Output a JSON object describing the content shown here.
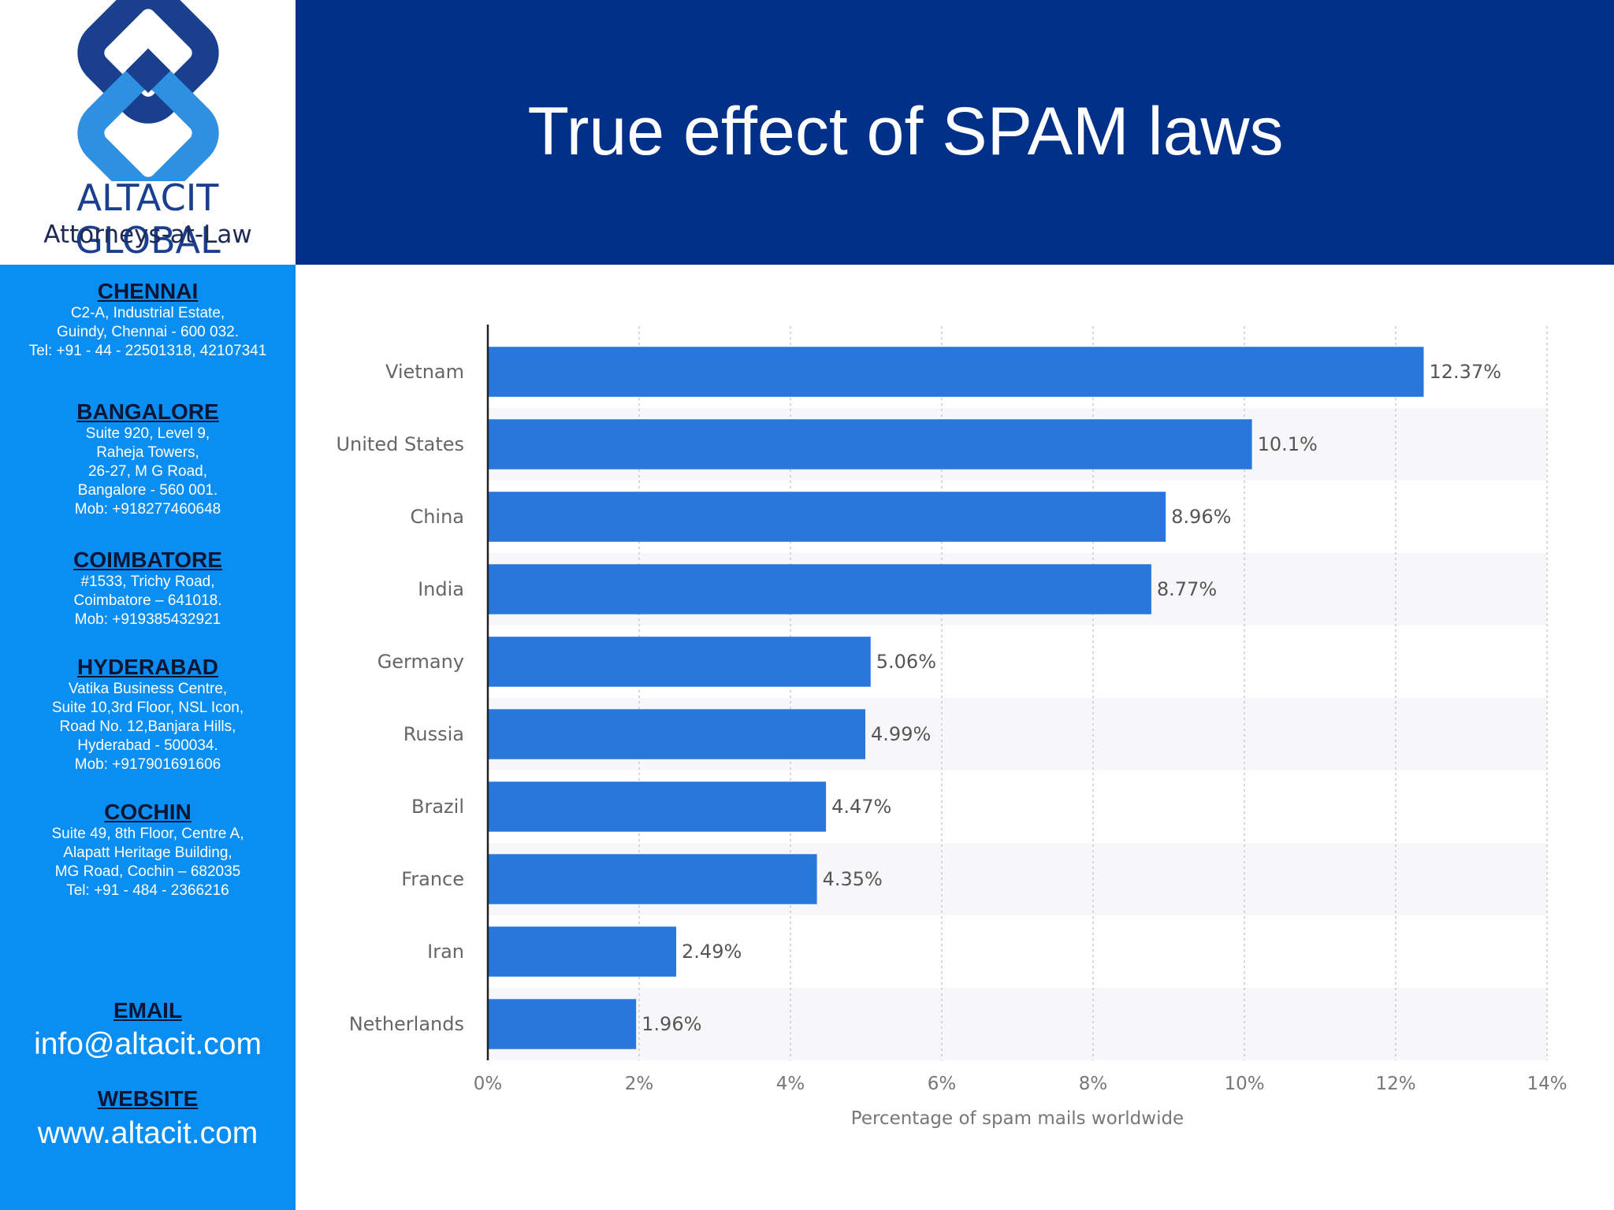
{
  "brand": {
    "name": "ALTACIT GLOBAL",
    "tagline": "Attorneys-at-Law",
    "colors": {
      "dark_blue": "#1a3f8f",
      "light_blue": "#2f8fe0"
    }
  },
  "header": {
    "title": "True effect of SPAM laws",
    "background": "#003087"
  },
  "sidebar": {
    "background": "#0b8ef2",
    "offices": [
      {
        "name": "CHENNAI",
        "lines": [
          "C2-A, Industrial Estate,",
          "Guindy, Chennai - 600 032.",
          "Tel: +91 - 44 - 22501318, 42107341"
        ]
      },
      {
        "name": "BANGALORE",
        "lines": [
          "Suite 920, Level 9,",
          "Raheja Towers,",
          "26-27, M G Road,",
          "Bangalore - 560 001.",
          "Mob: +918277460648"
        ]
      },
      {
        "name": "COIMBATORE",
        "lines": [
          "#1533, Trichy Road,",
          "Coimbatore – 641018.",
          "Mob: +919385432921"
        ]
      },
      {
        "name": "HYDERABAD",
        "lines": [
          "Vatika Business Centre,",
          "Suite 10,3rd Floor, NSL Icon,",
          "Road No. 12,Banjara Hills,",
          "Hyderabad - 500034.",
          "Mob: +917901691606"
        ]
      },
      {
        "name": "COCHIN",
        "lines": [
          "Suite 49, 8th Floor, Centre A,",
          "Alapatt Heritage Building,",
          "MG Road, Cochin – 682035",
          "Tel: +91 - 484 - 2366216"
        ]
      }
    ],
    "email_label": "EMAIL",
    "email": "info@altacit.com",
    "website_label": "WEBSITE",
    "website": "www.altacit.com"
  },
  "chart_data": {
    "type": "bar",
    "orientation": "horizontal",
    "categories": [
      "Vietnam",
      "United States",
      "China",
      "India",
      "Germany",
      "Russia",
      "Brazil",
      "France",
      "Iran",
      "Netherlands"
    ],
    "values": [
      12.37,
      10.1,
      8.96,
      8.77,
      5.06,
      4.99,
      4.47,
      4.35,
      2.49,
      1.96
    ],
    "value_labels": [
      "12.37%",
      "10.1%",
      "8.96%",
      "8.77%",
      "5.06%",
      "4.99%",
      "4.47%",
      "4.35%",
      "2.49%",
      "1.96%"
    ],
    "xlim": [
      0,
      14
    ],
    "xticks": [
      0,
      2,
      4,
      6,
      8,
      10,
      12,
      14
    ],
    "xtick_labels": [
      "0%",
      "2%",
      "4%",
      "6%",
      "8%",
      "10%",
      "12%",
      "14%"
    ],
    "xlabel": "Percentage of spam mails worldwide",
    "ylabel": "",
    "grid": true,
    "bar_color": "#2a77dc"
  }
}
